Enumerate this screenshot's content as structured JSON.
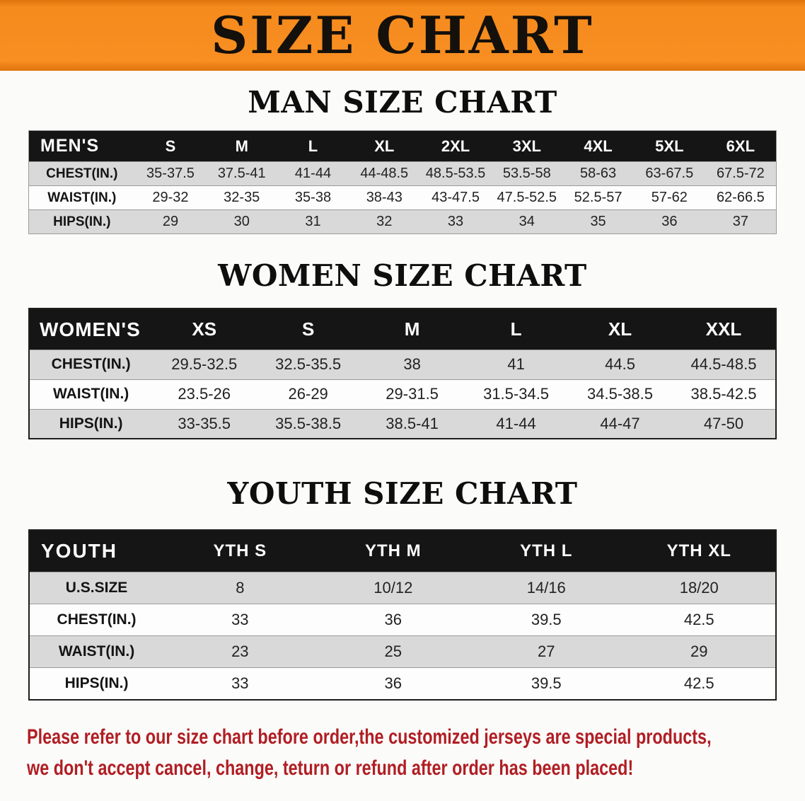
{
  "banner": {
    "title": "SIZE CHART"
  },
  "chart_data": [
    {
      "type": "table",
      "title": "MAN SIZE CHART",
      "columns": [
        "MEN'S",
        "S",
        "M",
        "L",
        "XL",
        "2XL",
        "3XL",
        "4XL",
        "5XL",
        "6XL"
      ],
      "rows": [
        [
          "CHEST(IN.)",
          "35-37.5",
          "37.5-41",
          "41-44",
          "44-48.5",
          "48.5-53.5",
          "53.5-58",
          "58-63",
          "63-67.5",
          "67.5-72"
        ],
        [
          "WAIST(IN.)",
          "29-32",
          "32-35",
          "35-38",
          "38-43",
          "43-47.5",
          "47.5-52.5",
          "52.5-57",
          "57-62",
          "62-66.5"
        ],
        [
          "HIPS(IN.)",
          "29",
          "30",
          "31",
          "32",
          "33",
          "34",
          "35",
          "36",
          "37"
        ]
      ]
    },
    {
      "type": "table",
      "title": "WOMEN SIZE CHART",
      "columns": [
        "WOMEN'S",
        "XS",
        "S",
        "M",
        "L",
        "XL",
        "XXL"
      ],
      "rows": [
        [
          "CHEST(IN.)",
          "29.5-32.5",
          "32.5-35.5",
          "38",
          "41",
          "44.5",
          "44.5-48.5"
        ],
        [
          "WAIST(IN.)",
          "23.5-26",
          "26-29",
          "29-31.5",
          "31.5-34.5",
          "34.5-38.5",
          "38.5-42.5"
        ],
        [
          "HIPS(IN.)",
          "33-35.5",
          "35.5-38.5",
          "38.5-41",
          "41-44",
          "44-47",
          "47-50"
        ]
      ]
    },
    {
      "type": "table",
      "title": "YOUTH SIZE CHART",
      "columns": [
        "YOUTH",
        "YTH S",
        "YTH M",
        "YTH L",
        "YTH XL"
      ],
      "rows": [
        [
          "U.S.SIZE",
          "8",
          "10/12",
          "14/16",
          "18/20"
        ],
        [
          "CHEST(IN.)",
          "33",
          "36",
          "39.5",
          "42.5"
        ],
        [
          "WAIST(IN.)",
          "23",
          "25",
          "27",
          "29"
        ],
        [
          "HIPS(IN.)",
          "33",
          "36",
          "39.5",
          "42.5"
        ]
      ]
    }
  ],
  "disclaimer": {
    "lines": [
      "Please refer to our size chart before order,the customized jerseys are special products,",
      "we don't accept cancel, change, teturn or refund after order has been placed!"
    ]
  },
  "colors": {
    "banner_bg": "#F58A1D",
    "banner_text": "#14100B",
    "table_header_bg": "#151515",
    "table_header_text": "#FDFDFD",
    "row_alt_bg": "#D9D9D9",
    "row_bg": "#FDFDFD",
    "disclaimer_text": "#B01E23"
  }
}
